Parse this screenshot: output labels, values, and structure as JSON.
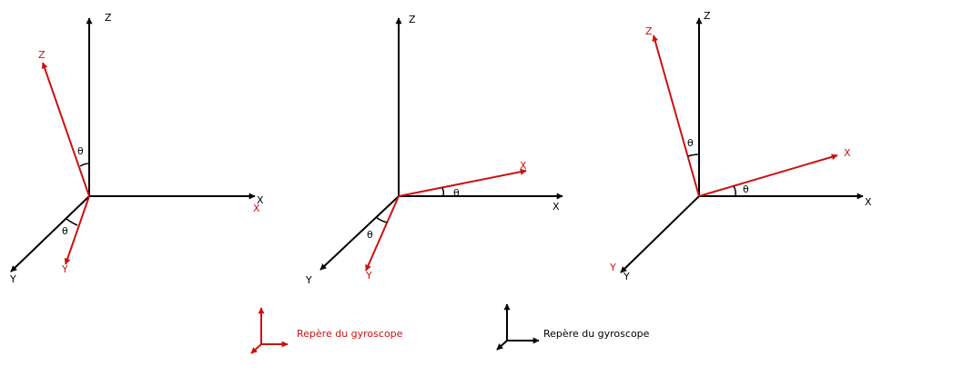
{
  "colors": {
    "fixed_frame": "#000000",
    "gyro_frame": "#cc1111"
  },
  "diagrams": [
    {
      "fixed": {
        "x": "X",
        "y": "Y",
        "z": "Z"
      },
      "gyro": {
        "x": "X",
        "y": "Y",
        "z": "Z"
      },
      "angles": [
        "θ",
        "θ"
      ]
    },
    {
      "fixed": {
        "x": "X",
        "y": "Y",
        "z": "Z"
      },
      "gyro": {
        "x": "X",
        "y": "Y"
      },
      "angles": [
        "θ",
        "θ"
      ]
    },
    {
      "fixed": {
        "x": "X",
        "y": "Y",
        "z": "Z"
      },
      "gyro": {
        "x": "X",
        "y": "Y",
        "z": "Z"
      },
      "angles": [
        "θ",
        "θ"
      ]
    }
  ],
  "legend": [
    {
      "label": "Repère du gyroscope",
      "color": "#cc1111"
    },
    {
      "label": "Repère du gyroscope",
      "color": "#000000"
    }
  ]
}
